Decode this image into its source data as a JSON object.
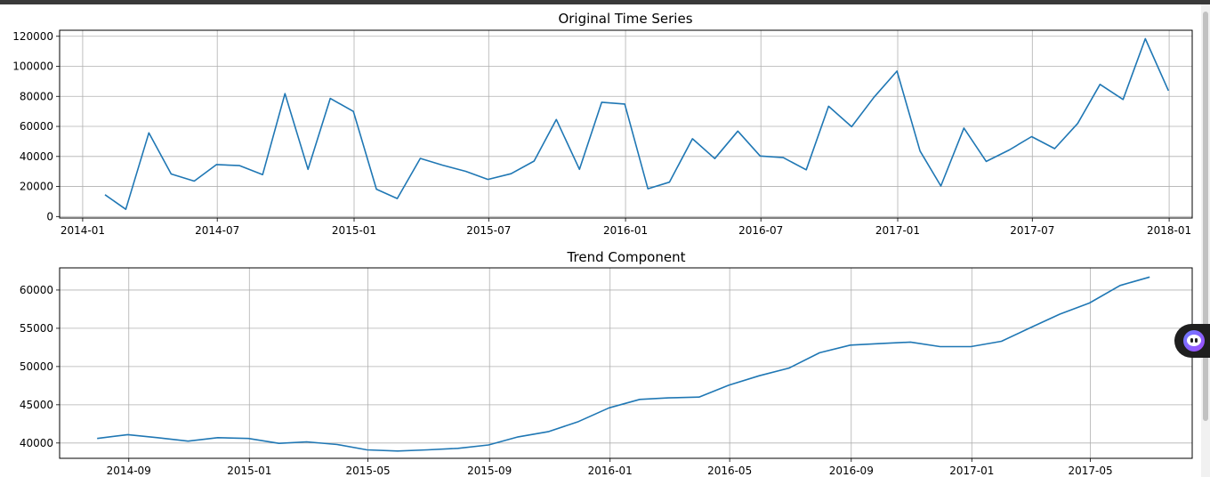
{
  "colors": {
    "line": "#1f77b4",
    "grid": "#b0b0b0",
    "axis": "#000000"
  },
  "floating_button": {
    "icon": "assistant-face-icon"
  },
  "chart_data": [
    {
      "type": "line",
      "title": "Original Time Series",
      "xlabel": "",
      "ylabel": "",
      "grid": true,
      "x_ticks": [
        "2014-01",
        "2014-07",
        "2015-01",
        "2015-07",
        "2016-01",
        "2016-07",
        "2017-01",
        "2017-07",
        "2018-01"
      ],
      "y_ticks": [
        "0",
        "20000",
        "40000",
        "60000",
        "80000",
        "100000",
        "120000"
      ],
      "xlim": [
        "2013-12-01",
        "2018-02-01"
      ],
      "ylim": [
        -1000,
        124000
      ],
      "series": [
        {
          "x": [
            "2014-01-31",
            "2014-02-28",
            "2014-03-31",
            "2014-04-30",
            "2014-05-31",
            "2014-06-30",
            "2014-07-31",
            "2014-08-31",
            "2014-09-30",
            "2014-10-31",
            "2014-11-30",
            "2014-12-31",
            "2015-01-31",
            "2015-02-28",
            "2015-03-31",
            "2015-04-30",
            "2015-05-31",
            "2015-06-30",
            "2015-07-31",
            "2015-08-31",
            "2015-09-30",
            "2015-10-31",
            "2015-11-30",
            "2015-12-31",
            "2016-01-31",
            "2016-02-29",
            "2016-03-31",
            "2016-04-30",
            "2016-05-31",
            "2016-06-30",
            "2016-07-31",
            "2016-08-31",
            "2016-09-30",
            "2016-10-31",
            "2016-11-30",
            "2016-12-31",
            "2017-01-31",
            "2017-02-28",
            "2017-03-31",
            "2017-04-30",
            "2017-05-31",
            "2017-06-30",
            "2017-07-31",
            "2017-08-31",
            "2017-09-30",
            "2017-10-31",
            "2017-11-30",
            "2017-12-31"
          ],
          "values": [
            14500,
            4800,
            55700,
            28300,
            23600,
            34600,
            33900,
            27900,
            81800,
            31400,
            78600,
            70000,
            18200,
            12000,
            38700,
            34200,
            30100,
            24700,
            28500,
            36900,
            64600,
            31400,
            76100,
            74900,
            18500,
            22900,
            51800,
            38600,
            56900,
            40300,
            39200,
            31100,
            73400,
            59800,
            79400,
            96800,
            43600,
            20300,
            58900,
            36700,
            44300,
            53200,
            45200,
            62000,
            88000,
            77900,
            118400,
            83800
          ]
        }
      ]
    },
    {
      "type": "line",
      "title": "Trend Component",
      "xlabel": "",
      "ylabel": "",
      "grid": true,
      "x_ticks": [
        "2014-09",
        "2015-01",
        "2015-05",
        "2015-09",
        "2016-01",
        "2016-05",
        "2016-09",
        "2017-01",
        "2017-05"
      ],
      "y_ticks": [
        "40000",
        "45000",
        "50000",
        "55000",
        "60000"
      ],
      "xlim": [
        "2014-06-23",
        "2017-08-12"
      ],
      "ylim": [
        38000,
        62900
      ],
      "series": [
        {
          "x": [
            "2014-07-31",
            "2014-08-31",
            "2014-09-30",
            "2014-10-31",
            "2014-11-30",
            "2014-12-31",
            "2015-01-31",
            "2015-02-28",
            "2015-03-31",
            "2015-04-30",
            "2015-05-31",
            "2015-06-30",
            "2015-07-31",
            "2015-08-31",
            "2015-09-30",
            "2015-10-31",
            "2015-11-30",
            "2015-12-31",
            "2016-01-31",
            "2016-02-29",
            "2016-03-31",
            "2016-04-30",
            "2016-05-31",
            "2016-06-30",
            "2016-07-31",
            "2016-08-31",
            "2016-09-30",
            "2016-10-31",
            "2016-11-30",
            "2016-12-31",
            "2017-01-31",
            "2017-02-28",
            "2017-03-31",
            "2017-04-30",
            "2017-05-31",
            "2017-06-30"
          ],
          "values": [
            40600,
            41100,
            40700,
            40250,
            40700,
            40600,
            39950,
            40150,
            39800,
            39100,
            38950,
            39100,
            39300,
            39750,
            40800,
            41500,
            42800,
            44600,
            45700,
            45900,
            46000,
            47550,
            48800,
            49800,
            51800,
            52800,
            53000,
            53200,
            52600,
            52600,
            53300,
            55000,
            56850,
            58300,
            60600,
            61700
          ]
        }
      ]
    }
  ]
}
